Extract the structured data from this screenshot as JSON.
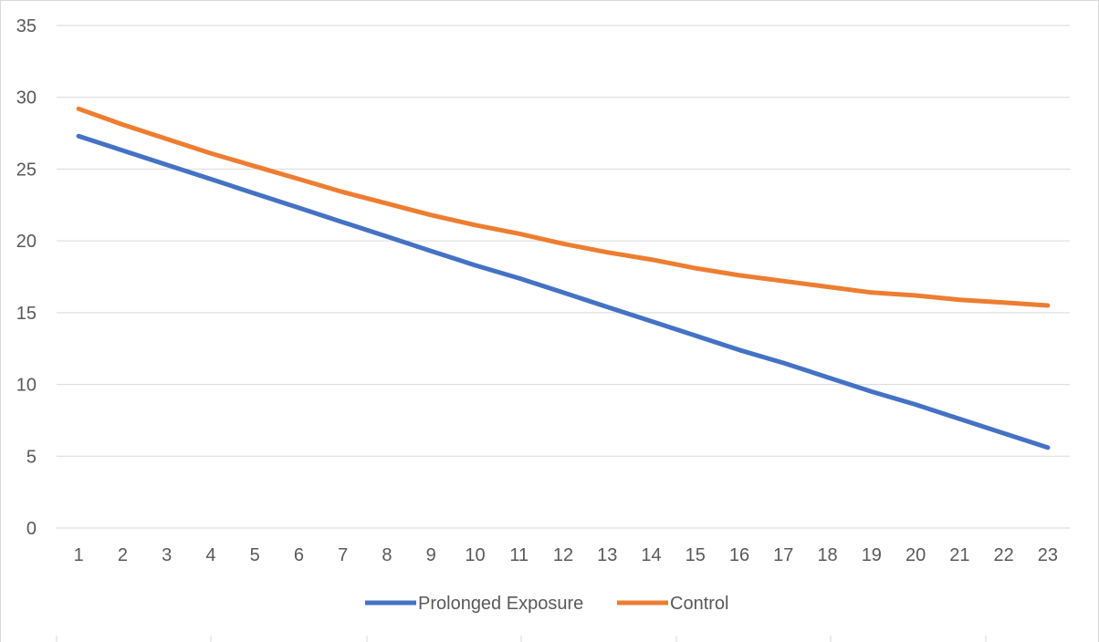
{
  "chart_data": {
    "type": "line",
    "title": "",
    "xlabel": "",
    "ylabel": "",
    "ylim": [
      0,
      35
    ],
    "yticks": [
      0,
      5,
      10,
      15,
      20,
      25,
      30,
      35
    ],
    "grid": true,
    "legend_position": "bottom",
    "categories": [
      "1",
      "2",
      "3",
      "4",
      "5",
      "6",
      "7",
      "8",
      "9",
      "10",
      "11",
      "12",
      "13",
      "14",
      "15",
      "16",
      "17",
      "18",
      "19",
      "20",
      "21",
      "22",
      "23"
    ],
    "series": [
      {
        "name": "Prolonged Exposure",
        "color": "#4472C4",
        "values": [
          27.3,
          26.3,
          25.3,
          24.3,
          23.3,
          22.3,
          21.3,
          20.3,
          19.3,
          18.3,
          17.4,
          16.4,
          15.4,
          14.4,
          13.4,
          12.4,
          11.5,
          10.5,
          9.5,
          8.6,
          7.6,
          6.6,
          5.6
        ]
      },
      {
        "name": "Control",
        "color": "#ED7D31",
        "values": [
          29.2,
          28.1,
          27.1,
          26.1,
          25.2,
          24.3,
          23.4,
          22.6,
          21.8,
          21.1,
          20.5,
          19.8,
          19.2,
          18.7,
          18.1,
          17.6,
          17.2,
          16.8,
          16.4,
          16.2,
          15.9,
          15.7,
          15.5
        ]
      }
    ]
  }
}
